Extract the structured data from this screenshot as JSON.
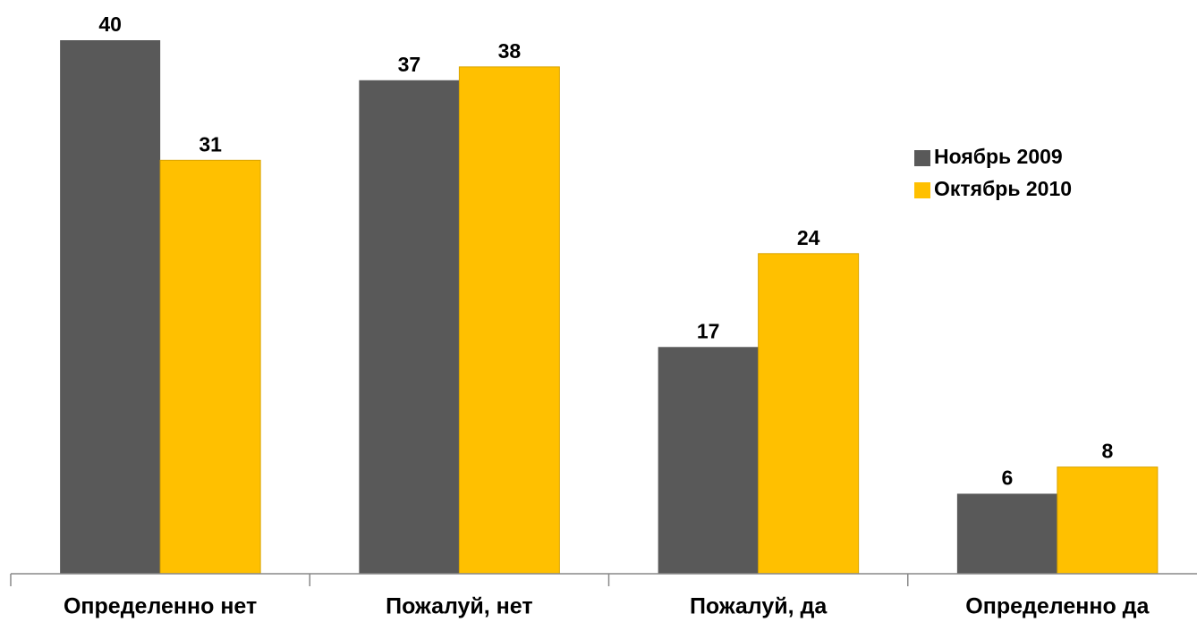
{
  "chart_data": {
    "type": "bar",
    "categories": [
      "Определенно нет",
      "Пожалуй, нет",
      "Пожалуй, да",
      "Определенно да"
    ],
    "series": [
      {
        "name": "Ноябрь 2009",
        "color": "#595959",
        "values": [
          40,
          37,
          17,
          6
        ]
      },
      {
        "name": "Октябрь 2010",
        "color": "#ffc000",
        "values": [
          31,
          38,
          24,
          8
        ]
      }
    ],
    "legend": "right"
  }
}
